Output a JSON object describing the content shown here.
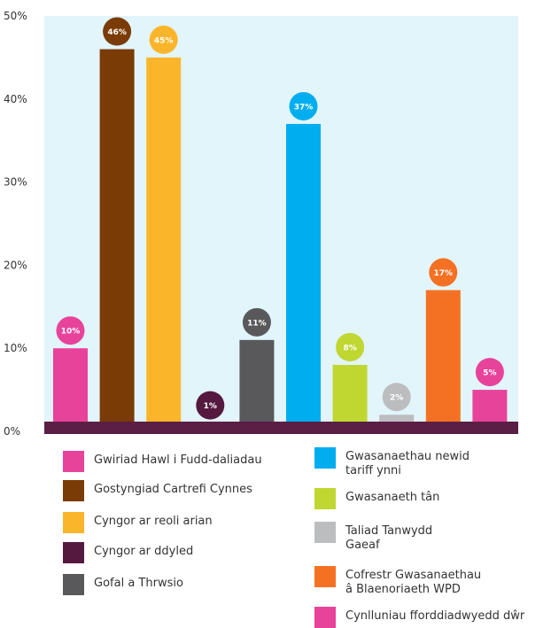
{
  "chart_data": {
    "type": "bar",
    "categories": [
      "Gwiriad Hawl i Fudd-daliadau",
      "Gostyngiad Cartrefi Cynnes",
      "Cyngor ar reoli arian",
      "Cyngor ar ddyled",
      "Gofal a Thrwsio",
      "Gwasanaethau newid tariff ynni",
      "Gwasanaeth tân",
      "Taliad Tanwydd Gaeaf",
      "Cofrestr Gwasanaethau â Blaenoriaeth WPD",
      "Cynlluniau fforddiadwyedd dŵr"
    ],
    "values": [
      10,
      46,
      45,
      1,
      11,
      37,
      8,
      2,
      17,
      5
    ],
    "data_labels": [
      "10%",
      "46%",
      "45%",
      "1%",
      "11%",
      "37%",
      "8%",
      "2%",
      "17%",
      "5%"
    ],
    "colors": [
      "#e8439a",
      "#7a3b06",
      "#fbb52a",
      "#55193f",
      "#59595b",
      "#00adef",
      "#bfd730",
      "#bcbdbf",
      "#f47124",
      "#e8439a"
    ],
    "ylim": [
      0,
      50
    ],
    "yticks": [
      "0%",
      "10%",
      "20%",
      "30%",
      "40%",
      "50%"
    ],
    "plot_background": "#e2f5fb",
    "baseline_color": "#5b1e45",
    "grid": false,
    "legend_position": "bottom"
  },
  "legend": {
    "left": [
      {
        "label": "Gwiriad Hawl i Fudd-daliadau",
        "color": "#e8439a"
      },
      {
        "label": "Gostyngiad Cartrefi Cynnes",
        "color": "#7a3b06"
      },
      {
        "label": "Cyngor ar reoli arian",
        "color": "#fbb52a"
      },
      {
        "label": "Cyngor ar ddyled",
        "color": "#55193f"
      },
      {
        "label": "Gofal a Thrwsio",
        "color": "#59595b"
      }
    ],
    "right": [
      {
        "label": "Gwasanaethau newid\ntariff ynni",
        "color": "#00adef"
      },
      {
        "label": "Gwasanaeth tân",
        "color": "#bfd730"
      },
      {
        "label": "Taliad Tanwydd\nGaeaf",
        "color": "#bcbdbf"
      },
      {
        "label": "Cofrestr Gwasanaethau\nâ Blaenoriaeth WPD",
        "color": "#f47124"
      },
      {
        "label": "Cynlluniau fforddiadwyedd dŵr",
        "color": "#e8439a"
      }
    ]
  }
}
